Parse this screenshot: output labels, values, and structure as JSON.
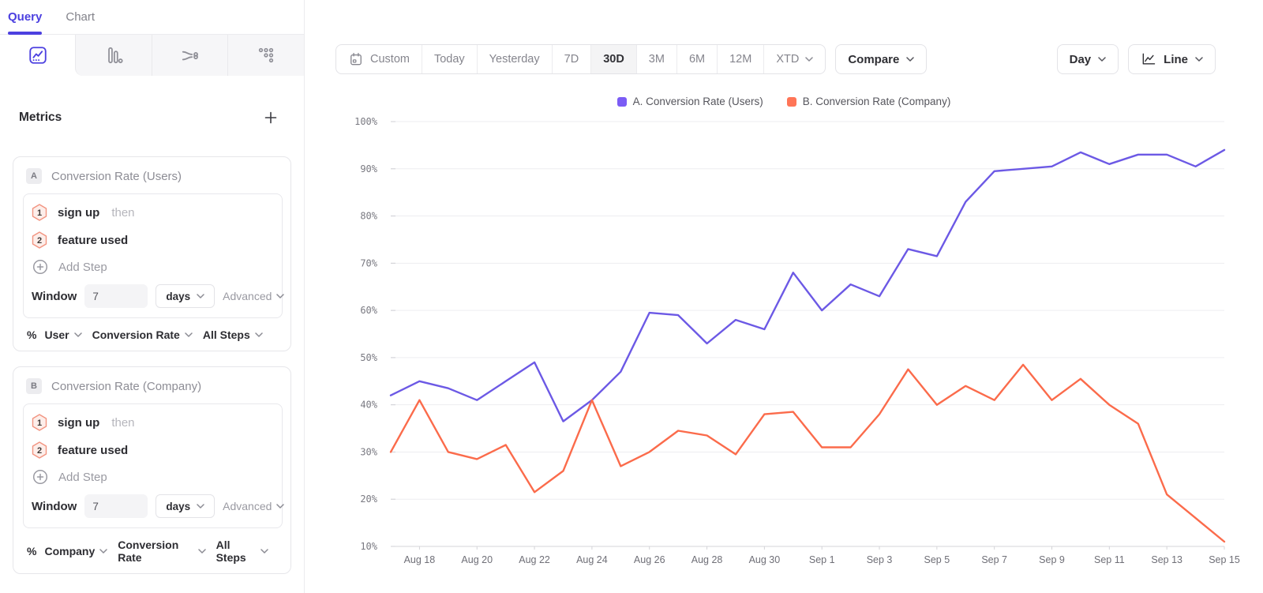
{
  "colors": {
    "accent": "#4C40E0",
    "series_a_line": "#6C59E5",
    "series_b_line": "#FB6B4B"
  },
  "sidebar": {
    "tabs": [
      {
        "label": "Query"
      },
      {
        "label": "Chart"
      }
    ],
    "metrics_title": "Metrics",
    "metrics": [
      {
        "id": "A",
        "title": "Conversion Rate (Users)",
        "steps": [
          {
            "num": "1",
            "label": "sign up",
            "suffix": "then"
          },
          {
            "num": "2",
            "label": "feature used",
            "suffix": ""
          }
        ],
        "add_step_label": "Add Step",
        "window": {
          "label": "Window",
          "value": "7",
          "unit": "days",
          "advanced_label": "Advanced"
        },
        "breakdown": {
          "prefix": "%",
          "entity": "User",
          "measure": "Conversion Rate",
          "steps_scope": "All Steps"
        }
      },
      {
        "id": "B",
        "title": "Conversion Rate (Company)",
        "steps": [
          {
            "num": "1",
            "label": "sign up",
            "suffix": "then"
          },
          {
            "num": "2",
            "label": "feature used",
            "suffix": ""
          }
        ],
        "add_step_label": "Add Step",
        "window": {
          "label": "Window",
          "value": "7",
          "unit": "days",
          "advanced_label": "Advanced"
        },
        "breakdown": {
          "prefix": "%",
          "entity": "Company",
          "measure": "Conversion Rate",
          "steps_scope": "All Steps"
        }
      }
    ]
  },
  "toolbar": {
    "date_ranges": [
      {
        "label": "Custom"
      },
      {
        "label": "Today"
      },
      {
        "label": "Yesterday"
      },
      {
        "label": "7D"
      },
      {
        "label": "30D",
        "selected": true
      },
      {
        "label": "3M"
      },
      {
        "label": "6M"
      },
      {
        "label": "12M"
      },
      {
        "label": "XTD"
      }
    ],
    "compare_label": "Compare",
    "granularity_label": "Day",
    "chart_style_label": "Line"
  },
  "legend": [
    {
      "label": "A. Conversion Rate (Users)",
      "color": "#7B5CF5"
    },
    {
      "label": "B. Conversion Rate (Company)",
      "color": "#FF7557"
    }
  ],
  "chart_data": {
    "type": "line",
    "title": "",
    "xlabel": "",
    "ylabel": "",
    "ylim": [
      10,
      100
    ],
    "y_tick_step": 10,
    "y_tick_suffix": "%",
    "x_tick_start_index": 1,
    "x_tick_step": 2,
    "grid": "horizontal",
    "legend_position": "top-center",
    "x": [
      "Aug 17",
      "Aug 18",
      "Aug 19",
      "Aug 20",
      "Aug 21",
      "Aug 22",
      "Aug 23",
      "Aug 24",
      "Aug 25",
      "Aug 26",
      "Aug 27",
      "Aug 28",
      "Aug 29",
      "Aug 30",
      "Aug 31",
      "Sep 1",
      "Sep 2",
      "Sep 3",
      "Sep 4",
      "Sep 5",
      "Sep 6",
      "Sep 7",
      "Sep 8",
      "Sep 9",
      "Sep 10",
      "Sep 11",
      "Sep 12",
      "Sep 13",
      "Sep 14",
      "Sep 15"
    ],
    "series": [
      {
        "name": "A. Conversion Rate (Users)",
        "color": "#6C59E5",
        "values": [
          42,
          45,
          43.5,
          41,
          45,
          49,
          36.5,
          41,
          47,
          59.5,
          59,
          53,
          58,
          56,
          68,
          60,
          65.5,
          63,
          73,
          71.5,
          83,
          89.5,
          90,
          90.5,
          93.5,
          91,
          93,
          93,
          90.5,
          94
        ]
      },
      {
        "name": "B. Conversion Rate (Company)",
        "color": "#FB6B4B",
        "values": [
          30,
          41,
          30,
          28.5,
          31.5,
          21.5,
          26,
          41,
          27,
          30,
          34.5,
          33.5,
          29.5,
          38,
          38.5,
          31,
          31,
          38,
          47.5,
          40,
          44,
          41,
          48.5,
          41,
          45.5,
          40,
          36,
          21,
          16,
          11
        ]
      }
    ]
  }
}
